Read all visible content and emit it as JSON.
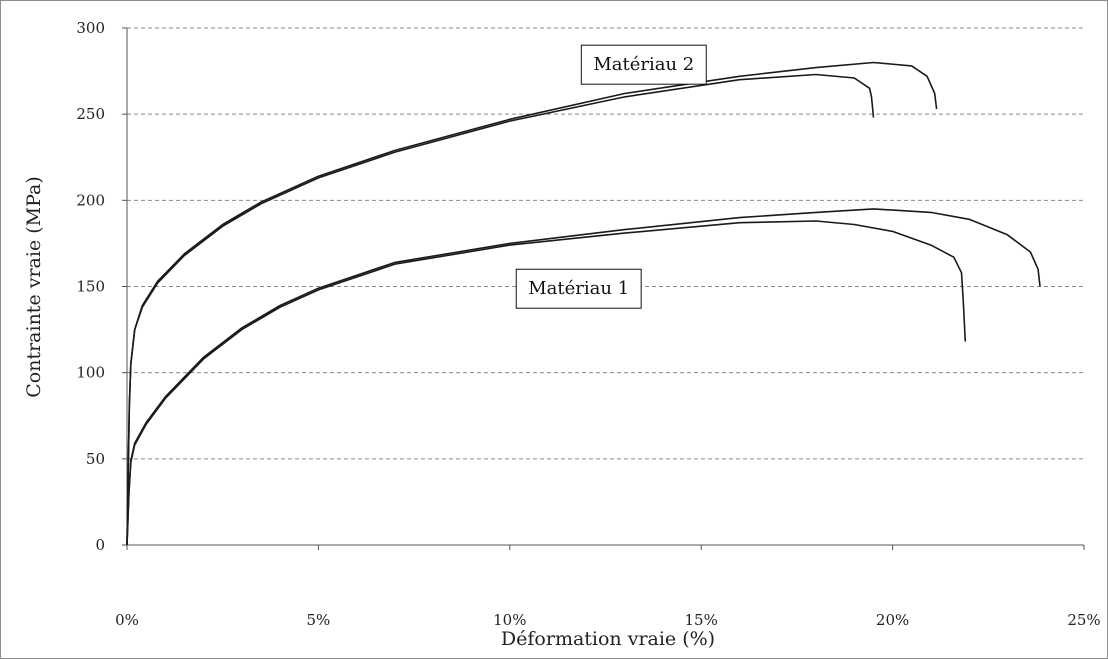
{
  "chart_data": {
    "type": "line",
    "title": "",
    "xlabel": "Déformation vraie (%)",
    "ylabel": "Contrainte vraie (MPa)",
    "xlim": [
      0,
      25
    ],
    "ylim": [
      0,
      300
    ],
    "x_ticks": [
      0,
      5,
      10,
      15,
      20,
      25
    ],
    "x_tick_labels": [
      "0%",
      "5%",
      "10%",
      "15%",
      "20%",
      "25%"
    ],
    "y_ticks": [
      0,
      50,
      100,
      150,
      200,
      250,
      300
    ],
    "y_tick_labels": [
      "0",
      "50",
      "100",
      "150",
      "200",
      "250",
      "300"
    ],
    "grid": "horizontal dashed",
    "line_color": "#1a1a1a",
    "annotations": [
      {
        "text": "Matériau 2",
        "x": 13.5,
        "y": 279
      },
      {
        "text": "Matériau 1",
        "x": 11.8,
        "y": 149
      }
    ],
    "series": [
      {
        "points": [
          [
            0,
            0
          ],
          [
            0.03,
            40
          ],
          [
            0.06,
            80
          ],
          [
            0.1,
            105
          ],
          [
            0.2,
            125
          ],
          [
            0.4,
            138
          ],
          [
            0.8,
            152
          ],
          [
            1.5,
            168
          ],
          [
            2.5,
            185
          ],
          [
            3.5,
            198
          ],
          [
            5,
            213
          ],
          [
            7,
            228
          ],
          [
            10,
            246
          ],
          [
            13,
            260
          ],
          [
            16,
            270
          ],
          [
            18,
            273
          ],
          [
            19,
            271
          ],
          [
            19.4,
            265
          ],
          [
            19.45,
            260
          ],
          [
            19.5,
            248
          ]
        ]
      },
      {
        "points": [
          [
            0,
            0
          ],
          [
            0.03,
            40
          ],
          [
            0.06,
            80
          ],
          [
            0.1,
            105
          ],
          [
            0.2,
            125
          ],
          [
            0.4,
            139
          ],
          [
            0.8,
            153
          ],
          [
            1.5,
            169
          ],
          [
            2.5,
            186
          ],
          [
            3.5,
            199
          ],
          [
            5,
            214
          ],
          [
            7,
            229
          ],
          [
            10,
            247
          ],
          [
            13,
            262
          ],
          [
            16,
            272
          ],
          [
            18,
            277
          ],
          [
            19.5,
            280
          ],
          [
            20.5,
            278
          ],
          [
            20.9,
            272
          ],
          [
            21.1,
            262
          ],
          [
            21.15,
            253
          ]
        ]
      },
      {
        "points": [
          [
            0,
            0
          ],
          [
            0.05,
            30
          ],
          [
            0.1,
            48
          ],
          [
            0.2,
            58
          ],
          [
            0.5,
            70
          ],
          [
            1,
            85
          ],
          [
            2,
            108
          ],
          [
            3,
            125
          ],
          [
            4,
            138
          ],
          [
            5,
            148
          ],
          [
            7,
            163
          ],
          [
            10,
            174
          ],
          [
            13,
            181
          ],
          [
            16,
            187
          ],
          [
            18,
            188
          ],
          [
            19,
            186
          ],
          [
            20,
            182
          ],
          [
            21,
            174
          ],
          [
            21.6,
            167
          ],
          [
            21.8,
            158
          ],
          [
            21.85,
            140
          ],
          [
            21.9,
            118
          ]
        ]
      },
      {
        "points": [
          [
            0,
            0
          ],
          [
            0.05,
            30
          ],
          [
            0.1,
            49
          ],
          [
            0.2,
            59
          ],
          [
            0.5,
            71
          ],
          [
            1,
            86
          ],
          [
            2,
            109
          ],
          [
            3,
            126
          ],
          [
            4,
            139
          ],
          [
            5,
            149
          ],
          [
            7,
            164
          ],
          [
            10,
            175
          ],
          [
            13,
            183
          ],
          [
            16,
            190
          ],
          [
            18,
            193
          ],
          [
            19.5,
            195
          ],
          [
            21,
            193
          ],
          [
            22,
            189
          ],
          [
            23,
            180
          ],
          [
            23.6,
            170
          ],
          [
            23.8,
            160
          ],
          [
            23.85,
            150
          ]
        ]
      }
    ]
  }
}
